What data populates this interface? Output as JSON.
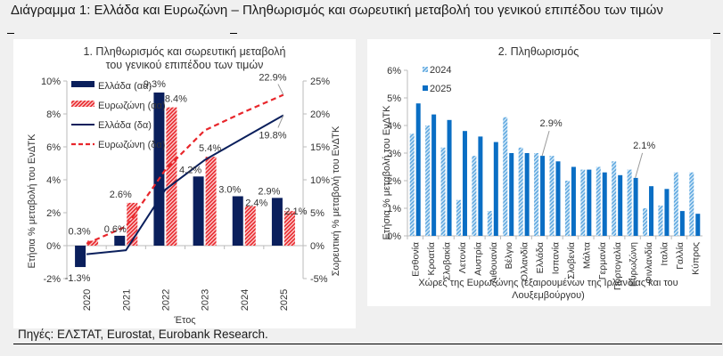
{
  "page": {
    "title": "Διάγραμμα 1: Ελλάδα και Ευρωζώνη – Πληθωρισμός και σωρευτική μεταβολή του γενικού επιπέδου των τιμών",
    "source": "Πηγές: ΕΛΣΤΑΤ, Eurostat, Eurobank Research."
  },
  "colors": {
    "greece": "#0a1f5c",
    "eurozone": "#e8262b",
    "y2024": "#5fa8e0",
    "y2025": "#0a6ec4"
  },
  "chart_data": [
    {
      "type": "bar",
      "title": "1. Πληθωρισμός και σωρευτική μεταβολή του γενικού επιπέδου των τιμών",
      "title_lines": [
        "1. Πληθωρισμός και σωρευτική μεταβολή",
        "του γενικού επιπέδου των τιμών"
      ],
      "xlabel": "Έτος",
      "ylabel": "Ετήσια % μεταβολή του ΕνΔΤΚ",
      "ylabel_right": "Σωρευτική % μεταβολή του ΕνΔΤΚ",
      "categories": [
        "2020",
        "2021",
        "2022",
        "2023",
        "2024",
        "2025"
      ],
      "ylim": [
        -2,
        10
      ],
      "yticks": [
        "-2%",
        "0%",
        "2%",
        "4%",
        "6%",
        "8%",
        "10%"
      ],
      "ylim_right": [
        -5,
        25
      ],
      "yticks_right": [
        "-5%",
        "0%",
        "5%",
        "10%",
        "15%",
        "20%",
        "25%"
      ],
      "legend_position": "top-left",
      "series": [
        {
          "name": "Ελλάδα (αα)",
          "kind": "bar",
          "axis": "left",
          "values": [
            -1.3,
            0.6,
            9.3,
            4.2,
            3.0,
            2.9
          ],
          "labels": [
            "-1.3%",
            "0.6%",
            "9.3%",
            "4.2%",
            "3.0%",
            "2.9%"
          ]
        },
        {
          "name": "Ευρωζώνη (αα)",
          "kind": "bar-hatched",
          "axis": "left",
          "values": [
            0.3,
            2.6,
            8.4,
            5.4,
            2.4,
            2.1
          ],
          "labels": [
            "0.3%",
            "2.6%",
            "8.4%",
            "5.4%",
            "2.4%",
            "2.1%"
          ]
        },
        {
          "name": "Ελλάδα (δα)",
          "kind": "line",
          "axis": "right",
          "values": [
            -1.3,
            -0.7,
            8.5,
            13.0,
            16.4,
            19.8
          ],
          "end_label": "19.8%"
        },
        {
          "name": "Ευρωζώνη (δα)",
          "kind": "line-dashed",
          "axis": "right",
          "values": [
            0.3,
            2.9,
            11.5,
            17.5,
            20.3,
            22.9
          ],
          "end_label": "22.9%"
        }
      ]
    },
    {
      "type": "bar",
      "title": "2. Πληθωρισμός",
      "xlabel_lines": [
        "Χώρες της Ευρωζώνης (εξαιρουμένων της Ιρλανδίας και του",
        "Λουξεμβούργου)"
      ],
      "ylabel": "Ετήσια % μεταβολή του ΕνΔΤΚ",
      "ylim": [
        0,
        6
      ],
      "yticks": [
        "0%",
        "1%",
        "2%",
        "3%",
        "4%",
        "5%",
        "6%"
      ],
      "legend_position": "top-left",
      "categories": [
        "Εσθονία",
        "Κροατία",
        "Σλοβακία",
        "Λετονία",
        "Αυστρία",
        "Λιθουανία",
        "Βέλγιο",
        "Ολλανδία",
        "Ελλάδα",
        "Ισπανία",
        "Σλοβενία",
        "Μάλτα",
        "Γερμανία",
        "Πορτογαλία",
        "Ευρωζώνη",
        "Φινλανδία",
        "Ιταλία",
        "Γαλλία",
        "Κύπρος"
      ],
      "series": [
        {
          "name": "2024",
          "kind": "bar-hatched",
          "values": [
            3.7,
            4.0,
            3.2,
            1.3,
            2.9,
            0.9,
            4.3,
            3.2,
            3.0,
            2.9,
            2.0,
            2.4,
            2.5,
            2.7,
            2.4,
            1.0,
            1.1,
            2.3,
            2.3
          ]
        },
        {
          "name": "2025",
          "kind": "bar",
          "values": [
            4.8,
            4.4,
            4.2,
            3.8,
            3.6,
            3.4,
            3.0,
            3.0,
            2.9,
            2.7,
            2.5,
            2.4,
            2.3,
            2.2,
            2.1,
            1.8,
            1.7,
            0.9,
            0.8
          ]
        }
      ],
      "annotations": [
        {
          "category": "Ελλάδα",
          "series": "2025",
          "text": "2.9%"
        },
        {
          "category": "Ευρωζώνη",
          "series": "2025",
          "text": "2.1%"
        }
      ]
    }
  ]
}
